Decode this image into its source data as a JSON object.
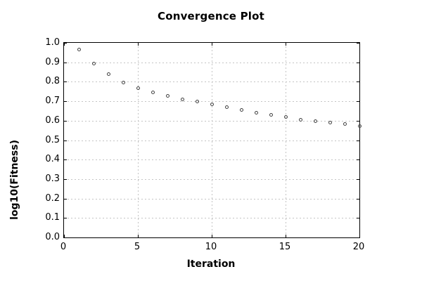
{
  "title": "Convergence Plot",
  "colors": {
    "background": "#ffffff",
    "axis": "#000000",
    "grid": "#c4c4c4",
    "marker": "#404040",
    "text": "#000000"
  },
  "chart_data": {
    "type": "scatter",
    "title": "Convergence Plot",
    "xlabel": "Iteration",
    "ylabel": "log10(Fitness)",
    "xlim": [
      0,
      20
    ],
    "ylim": [
      0.0,
      1.0
    ],
    "xticks": [
      0,
      5,
      10,
      15,
      20
    ],
    "yticks": [
      0.0,
      0.1,
      0.2,
      0.3,
      0.4,
      0.5,
      0.6,
      0.7,
      0.8,
      0.9,
      1.0
    ],
    "grid": true,
    "legend": "none",
    "marker": "open-circle",
    "series": [
      {
        "name": "log10(Fitness)",
        "x": [
          1,
          2,
          3,
          4,
          5,
          6,
          7,
          8,
          9,
          10,
          11,
          12,
          13,
          14,
          15,
          16,
          17,
          18,
          19,
          20
        ],
        "y": [
          0.965,
          0.893,
          0.838,
          0.797,
          0.767,
          0.744,
          0.728,
          0.71,
          0.697,
          0.684,
          0.67,
          0.655,
          0.641,
          0.63,
          0.618,
          0.604,
          0.596,
          0.592,
          0.583,
          0.574
        ]
      }
    ]
  }
}
